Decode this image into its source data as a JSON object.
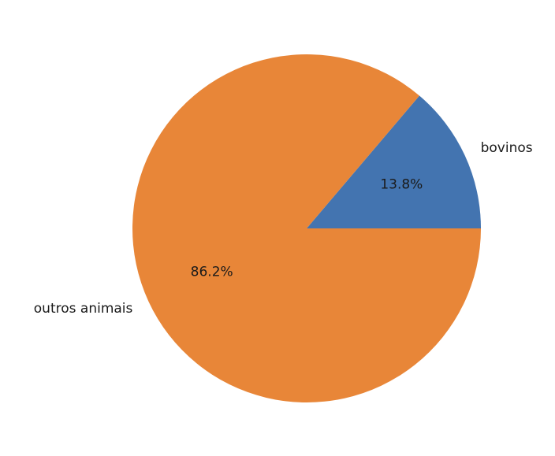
{
  "chart_data": {
    "type": "pie",
    "title": "",
    "slices": [
      {
        "label": "bovinos",
        "value": 13.8,
        "display": "13.8%",
        "color": "#4374b0"
      },
      {
        "label": "outros animais",
        "value": 86.2,
        "display": "86.2%",
        "color": "#e88638"
      }
    ],
    "start_angle_deg": 0,
    "direction": "counterclockwise"
  }
}
